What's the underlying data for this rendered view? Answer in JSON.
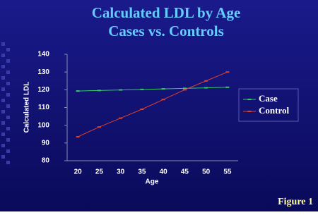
{
  "chart_data": {
    "type": "line",
    "title": "Calculated LDL by Age",
    "subtitle": "Cases vs. Controls",
    "x_label": "Age",
    "y_label": "Calculated LDL",
    "categories": [
      "20",
      "25",
      "30",
      "35",
      "40",
      "45",
      "50",
      "55"
    ],
    "series": [
      {
        "name": "Case",
        "color": "#33cc66",
        "values": [
          119.3,
          119.6,
          119.9,
          120.2,
          120.5,
          120.8,
          121.1,
          121.4
        ]
      },
      {
        "name": "Control",
        "color": "#e0402a",
        "values": [
          93.5,
          99,
          104,
          109,
          114.5,
          120,
          125,
          130
        ]
      }
    ],
    "ylim": [
      80,
      140
    ],
    "yticks": [
      80,
      90,
      100,
      110,
      120,
      130,
      140
    ],
    "grid": false,
    "legend": "right"
  },
  "figure_label": "Figure 1"
}
